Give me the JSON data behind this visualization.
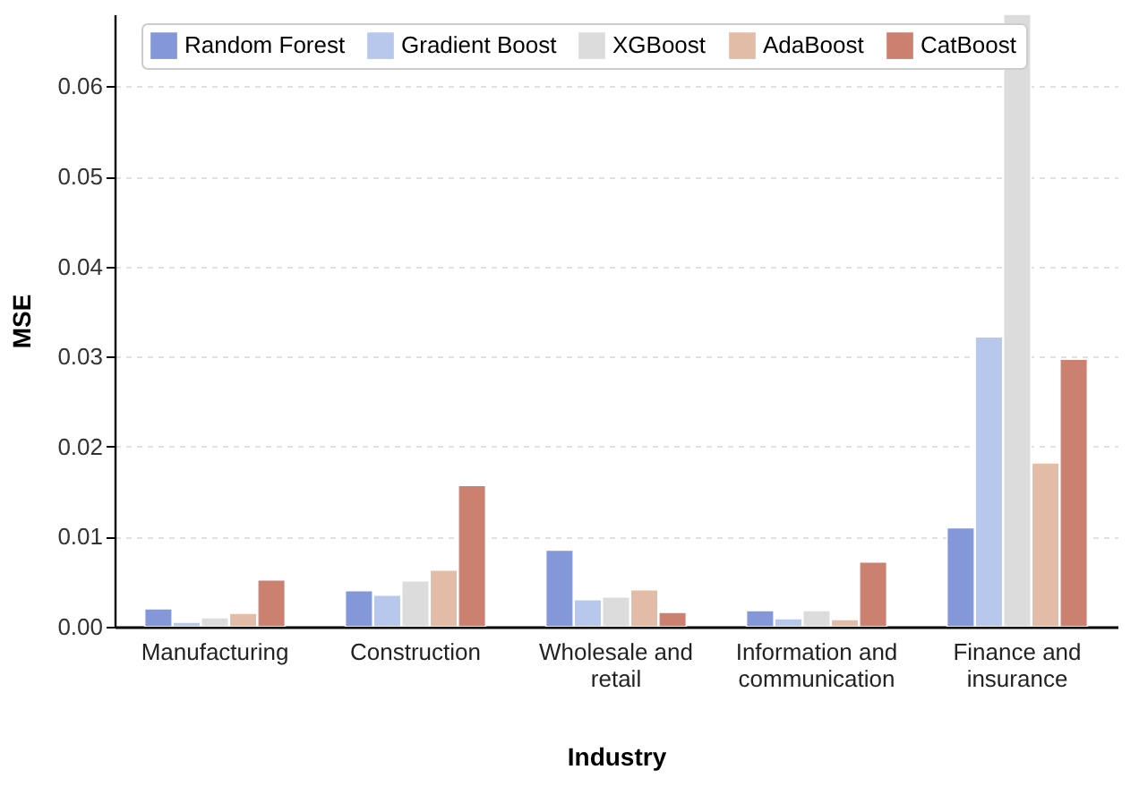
{
  "chart_data": {
    "type": "bar",
    "xlabel": "Industry",
    "ylabel": "MSE",
    "categories": [
      "Manufacturing",
      "Construction",
      "Wholesale and retail",
      "Information and communication",
      "Finance and insurance"
    ],
    "series": [
      {
        "name": "Random Forest",
        "color": "#8497d9",
        "values": [
          0.002,
          0.004,
          0.0085,
          0.0018,
          0.011
        ]
      },
      {
        "name": "Gradient Boost",
        "color": "#b8c8ec",
        "values": [
          0.0005,
          0.0035,
          0.003,
          0.0009,
          0.0322
        ]
      },
      {
        "name": "XGBoost",
        "color": "#dcdcdc",
        "values": [
          0.001,
          0.0051,
          0.0033,
          0.0018,
          0.068
        ]
      },
      {
        "name": "AdaBoost",
        "color": "#e3bca8",
        "values": [
          0.0015,
          0.0063,
          0.0041,
          0.0008,
          0.0182
        ]
      },
      {
        "name": "CatBoost",
        "color": "#cb8070",
        "values": [
          0.0052,
          0.0157,
          0.0016,
          0.0072,
          0.0297
        ]
      }
    ],
    "ylim": [
      0,
      0.068
    ],
    "yticks": [
      {
        "value": 0,
        "label": "0.00"
      },
      0.01,
      0.02,
      0.03,
      0.04,
      0.05,
      0.06
    ],
    "grid": "y",
    "legend": "top"
  }
}
